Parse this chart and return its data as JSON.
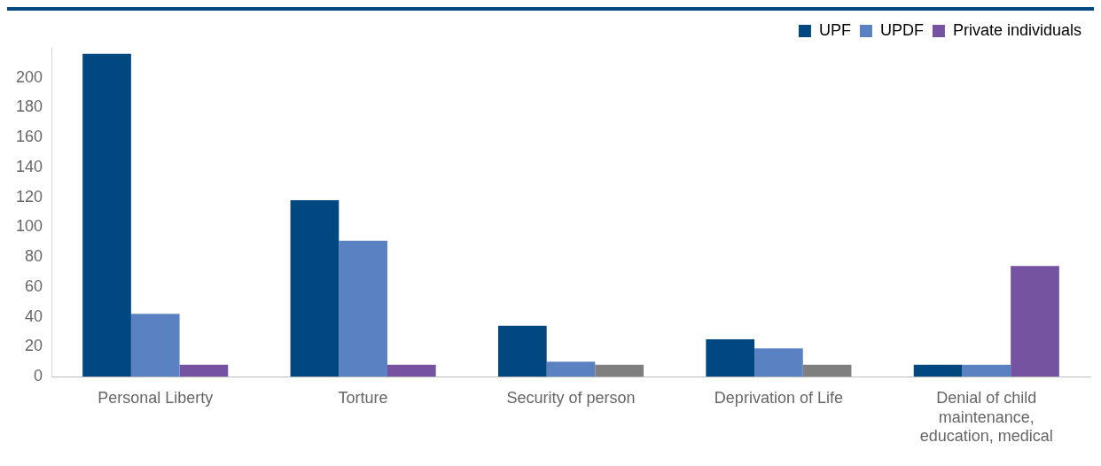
{
  "chart_data": {
    "type": "bar",
    "categories": [
      "Personal Liberty",
      "Torture",
      "Security of person",
      "Deprivation of Life",
      "Denial of child maintenance, education, medical"
    ],
    "series": [
      {
        "name": "UPF",
        "color": "#00487f",
        "values": [
          216,
          118,
          34,
          25,
          8
        ]
      },
      {
        "name": "UPDF",
        "color": "#5a82c2",
        "values": [
          42,
          91,
          10,
          19,
          8
        ]
      },
      {
        "name": "Private individuals",
        "color": "#7553a0",
        "colors": [
          "#7553a0",
          "#7553a0",
          "#7f7f7f",
          "#7f7f7f",
          "#7553a0"
        ],
        "values": [
          8,
          8,
          8,
          8,
          74
        ]
      }
    ],
    "ylim": [
      0,
      220
    ],
    "yticks": [
      0,
      20,
      40,
      60,
      80,
      100,
      120,
      140,
      160,
      180,
      200
    ],
    "grid": false,
    "legend": "top right"
  }
}
